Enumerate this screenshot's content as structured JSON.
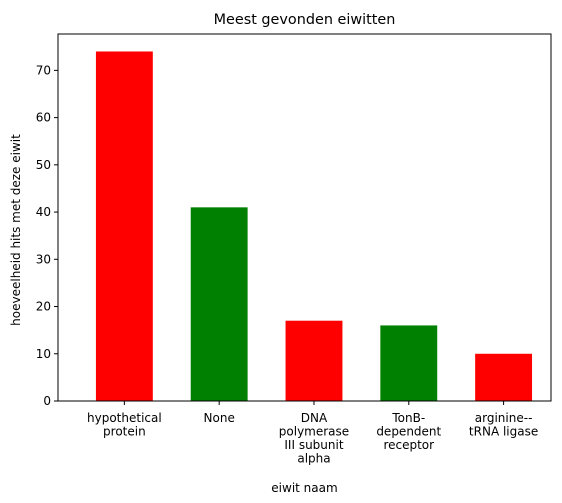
{
  "chart_data": {
    "type": "bar",
    "title": "Meest gevonden eiwitten",
    "xlabel": "eiwit naam",
    "ylabel": "hoeveelheid hits met deze eiwit",
    "categories": [
      [
        "hypothetical",
        "protein"
      ],
      [
        "None"
      ],
      [
        "DNA",
        "polymerase",
        "III subunit",
        "alpha"
      ],
      [
        "TonB-",
        "dependent",
        "receptor"
      ],
      [
        "arginine--",
        "tRNA ligase"
      ]
    ],
    "values": [
      74,
      41,
      17,
      16,
      10
    ],
    "bar_colors": [
      "#ff0000",
      "#008000",
      "#ff0000",
      "#008000",
      "#ff0000"
    ],
    "ylim": [
      0,
      77.7
    ],
    "yticks": [
      0,
      10,
      20,
      30,
      40,
      50,
      60,
      70
    ],
    "grid": false,
    "legend": "none"
  }
}
